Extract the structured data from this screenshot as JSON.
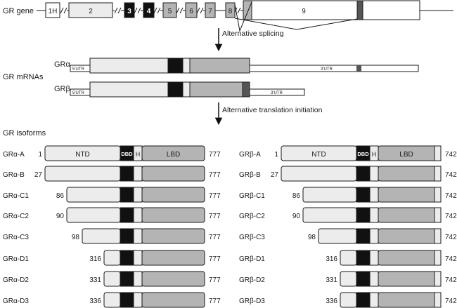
{
  "gene_label": "GR gene",
  "exons": [
    "1H",
    "2",
    "3",
    "4",
    "5",
    "6",
    "7",
    "8",
    "9"
  ],
  "step1_label": "Alternative splicing",
  "mrna_section_label": "GR mRNAs",
  "mrnas": [
    {
      "name": "GRα",
      "utr5": "5'UTR",
      "utr3": "3'UTR"
    },
    {
      "name": "GRβ",
      "utr5": "5'UTR",
      "utr3": "3'UTR"
    }
  ],
  "step2_label": "Alternative translation initiation",
  "isoform_section_label": "GR isoforms",
  "domain_labels": {
    "ntd": "NTD",
    "dbd": "DBD",
    "hinge": "H",
    "lbd": "LBD"
  },
  "alpha": {
    "end": "777",
    "isoforms": [
      {
        "name": "GRα-A",
        "start": "1"
      },
      {
        "name": "GRα-B",
        "start": "27"
      },
      {
        "name": "GRα-C1",
        "start": "86"
      },
      {
        "name": "GRα-C2",
        "start": "90"
      },
      {
        "name": "GRα-C3",
        "start": "98"
      },
      {
        "name": "GRα-D1",
        "start": "316"
      },
      {
        "name": "GRα-D2",
        "start": "331"
      },
      {
        "name": "GRα-D3",
        "start": "336"
      }
    ]
  },
  "beta": {
    "end": "742",
    "isoforms": [
      {
        "name": "GRβ-A",
        "start": "1"
      },
      {
        "name": "GRβ-B",
        "start": "27"
      },
      {
        "name": "GRβ-C1",
        "start": "86"
      },
      {
        "name": "GRβ-C2",
        "start": "90"
      },
      {
        "name": "GRβ-C3",
        "start": "98"
      },
      {
        "name": "GRβ-D1",
        "start": "316"
      },
      {
        "name": "GRβ-D2",
        "start": "331"
      },
      {
        "name": "GRβ-D3",
        "start": "336"
      }
    ]
  },
  "colors": {
    "light": "#ececec",
    "mid": "#b4b4b4",
    "dark": "#111111",
    "stroke": "#1a1a1a",
    "white": "#ffffff"
  }
}
